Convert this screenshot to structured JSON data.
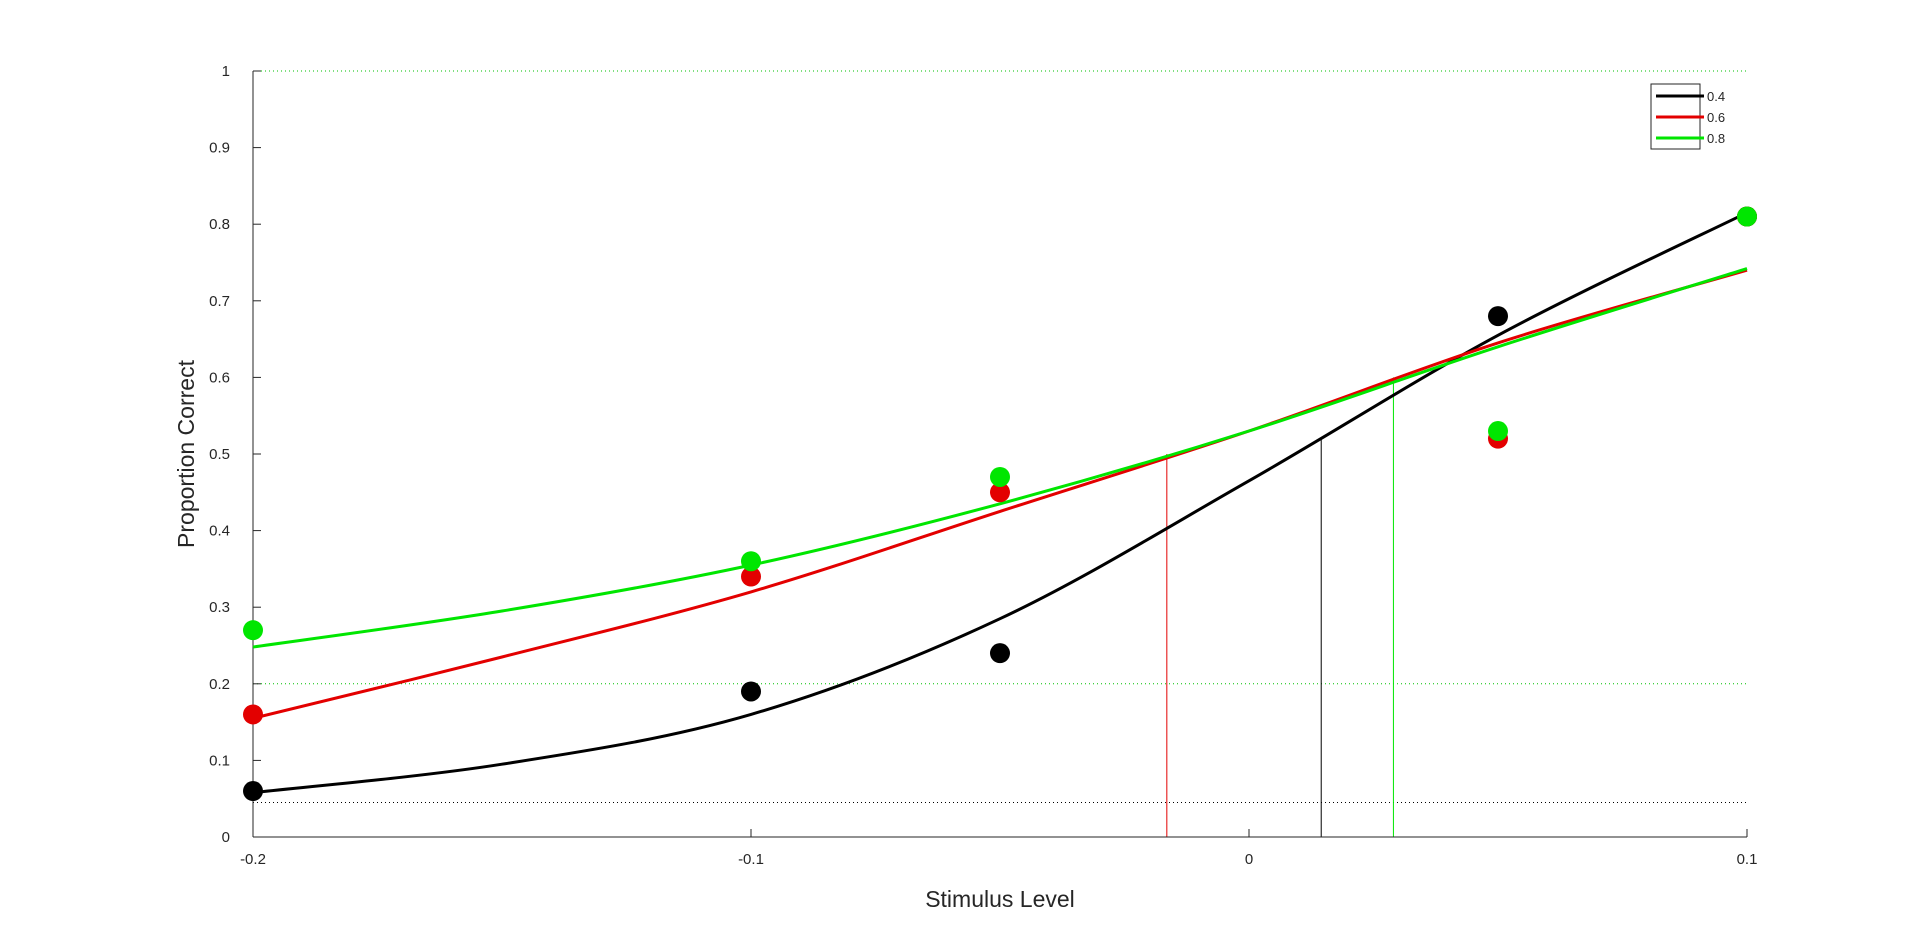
{
  "chart_data": {
    "type": "line",
    "title": "",
    "xlabel": "Stimulus Level",
    "ylabel": "Proportion Correct",
    "xlim": [
      -0.2,
      0.1
    ],
    "ylim": [
      0,
      1
    ],
    "x_ticks": [
      "-0.2",
      "-0.1",
      "0",
      "0.1"
    ],
    "y_ticks": [
      "0",
      "0.1",
      "0.2",
      "0.3",
      "0.4",
      "0.5",
      "0.6",
      "0.7",
      "0.8",
      "0.9",
      "1"
    ],
    "legend_position": "top-right",
    "x_points": [
      -0.2,
      -0.1,
      -0.05,
      0.05,
      0.1
    ],
    "series": [
      {
        "name": "0.4",
        "color": "#000000",
        "observed": [
          0.06,
          0.19,
          0.24,
          0.68,
          0.81
        ],
        "fit_x": [
          -0.2,
          -0.15,
          -0.1,
          -0.05,
          0.0,
          0.05,
          0.1
        ],
        "fit_y": [
          0.058,
          0.095,
          0.16,
          0.285,
          0.465,
          0.655,
          0.815
        ],
        "threshold_x": 0.0145,
        "threshold_y": 0.52
      },
      {
        "name": "0.6",
        "color": "#e30000",
        "observed": [
          0.16,
          0.34,
          0.45,
          0.52,
          0.81
        ],
        "fit_x": [
          -0.2,
          -0.15,
          -0.1,
          -0.05,
          0.0,
          0.05,
          0.1
        ],
        "fit_y": [
          0.155,
          0.235,
          0.32,
          0.425,
          0.53,
          0.645,
          0.74
        ],
        "threshold_x": -0.0165,
        "threshold_y": 0.5
      },
      {
        "name": "0.8",
        "color": "#00e600",
        "observed": [
          0.27,
          0.36,
          0.47,
          0.53,
          0.81
        ],
        "fit_x": [
          -0.2,
          -0.15,
          -0.1,
          -0.05,
          0.0,
          0.05,
          0.1
        ],
        "fit_y": [
          0.248,
          0.295,
          0.355,
          0.435,
          0.53,
          0.64,
          0.742
        ],
        "threshold_x": 0.029,
        "threshold_y": 0.6
      }
    ],
    "reference_lines": [
      {
        "y": 1.0,
        "color": "#00c000",
        "style": "dotted"
      },
      {
        "y": 0.2,
        "color": "#00c000",
        "style": "dotted"
      },
      {
        "y": 0.045,
        "color": "#000000",
        "style": "dotted"
      },
      {
        "y": 0.0,
        "color": "#e30000",
        "style": "solid"
      }
    ]
  }
}
